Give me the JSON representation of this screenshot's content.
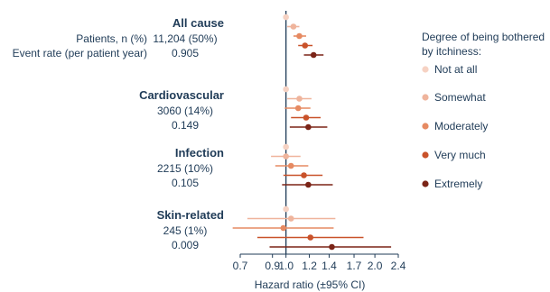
{
  "chart_data": {
    "type": "forest",
    "xlabel": "Hazard ratio (±95% CI)",
    "xscale": "log",
    "xlim": [
      0.7,
      2.4
    ],
    "xticks": [
      "0.7",
      "0.9",
      "1.0",
      "1.2",
      "1.4",
      "1.7",
      "2.0",
      "2.4"
    ],
    "reference_line": 1.0,
    "legend": {
      "title_lines": [
        "Degree of being bothered",
        "by itchiness:"
      ],
      "position": "right",
      "entries": [
        "Not at all",
        "Somewhat",
        "Moderately",
        "Very much",
        "Extremely"
      ]
    },
    "row_labels": {
      "patients": "Patients, n (%)",
      "event_rate": "Event rate (per patient year)"
    },
    "groups": [
      {
        "name": "All cause",
        "patients": "11,204 (50%)",
        "event_rate": "0.905",
        "series": [
          {
            "level": "Not at all",
            "hr": 1.0,
            "lo": 0.98,
            "hi": 1.02
          },
          {
            "level": "Somewhat",
            "hr": 1.06,
            "lo": 1.01,
            "hi": 1.11
          },
          {
            "level": "Moderately",
            "hr": 1.11,
            "lo": 1.06,
            "hi": 1.17
          },
          {
            "level": "Very much",
            "hr": 1.16,
            "lo": 1.1,
            "hi": 1.23
          },
          {
            "level": "Extremely",
            "hr": 1.24,
            "lo": 1.15,
            "hi": 1.34
          }
        ]
      },
      {
        "name": "Cardiovascular",
        "patients": "3060 (14%)",
        "event_rate": "0.149",
        "series": [
          {
            "level": "Not at all",
            "hr": 1.0,
            "lo": 0.98,
            "hi": 1.02
          },
          {
            "level": "Somewhat",
            "hr": 1.11,
            "lo": 1.01,
            "hi": 1.22
          },
          {
            "level": "Moderately",
            "hr": 1.1,
            "lo": 0.99,
            "hi": 1.21
          },
          {
            "level": "Very much",
            "hr": 1.17,
            "lo": 1.04,
            "hi": 1.31
          },
          {
            "level": "Extremely",
            "hr": 1.19,
            "lo": 1.03,
            "hi": 1.38
          }
        ]
      },
      {
        "name": "Infection",
        "patients": "2215 (10%)",
        "event_rate": "0.105",
        "series": [
          {
            "level": "Not at all",
            "hr": 1.0,
            "lo": 0.98,
            "hi": 1.02
          },
          {
            "level": "Somewhat",
            "hr": 1.0,
            "lo": 0.89,
            "hi": 1.12
          },
          {
            "level": "Moderately",
            "hr": 1.04,
            "lo": 0.92,
            "hi": 1.19
          },
          {
            "level": "Very much",
            "hr": 1.15,
            "lo": 0.98,
            "hi": 1.33
          },
          {
            "level": "Extremely",
            "hr": 1.19,
            "lo": 0.97,
            "hi": 1.44
          }
        ]
      },
      {
        "name": "Skin-related",
        "patients": "245 (1%)",
        "event_rate": "0.009",
        "series": [
          {
            "level": "Not at all",
            "hr": 1.0,
            "lo": 0.98,
            "hi": 1.02
          },
          {
            "level": "Somewhat",
            "hr": 1.04,
            "lo": 0.74,
            "hi": 1.47
          },
          {
            "level": "Moderately",
            "hr": 0.98,
            "lo": 0.66,
            "hi": 1.45
          },
          {
            "level": "Very much",
            "hr": 1.21,
            "lo": 0.8,
            "hi": 1.83
          },
          {
            "level": "Extremely",
            "hr": 1.43,
            "lo": 0.88,
            "hi": 2.27
          }
        ]
      }
    ],
    "colors": [
      "#f6d2c3",
      "#efb49c",
      "#e68a62",
      "#c9522a",
      "#7b2417"
    ]
  }
}
